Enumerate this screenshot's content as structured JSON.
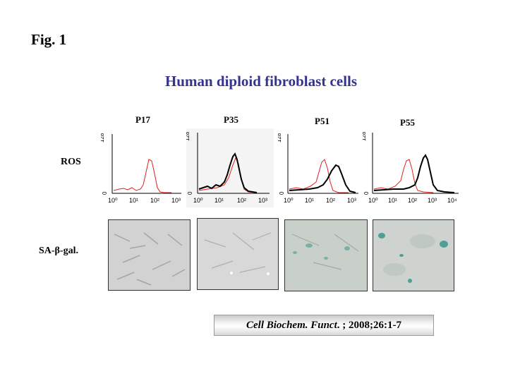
{
  "figure": {
    "label": "Fig. 1",
    "title": "Human diploid fibroblast cells",
    "row_labels": {
      "ros": "ROS",
      "sa_gal": "SA-β-gal."
    },
    "passages": [
      {
        "label": "P17",
        "colors": {
          "red": "#e02020",
          "black": null
        }
      },
      {
        "label": "P35",
        "colors": {
          "red": "#e02020",
          "black": "#000000"
        }
      },
      {
        "label": "P51",
        "colors": {
          "red": "#e02020",
          "black": "#000000"
        }
      },
      {
        "label": "P55",
        "colors": {
          "red": "#e02020",
          "black": "#000000"
        }
      }
    ],
    "histogram_axes": {
      "y_tick_top": "128",
      "y_tick_bottom": "0",
      "x_ticks": [
        "10⁰",
        "10¹",
        "10²",
        "10³"
      ],
      "x_ticks_last": [
        "10⁰",
        "10¹",
        "10²",
        "10³",
        "10⁴"
      ]
    },
    "micrograph_style": [
      {
        "tone": "#d4d4d4",
        "stain": "none"
      },
      {
        "tone": "#d9d9d9",
        "stain": "none"
      },
      {
        "tone": "#c9cfc9",
        "stain": "light-blue-green"
      },
      {
        "tone": "#cfd3cf",
        "stain": "blue-green"
      }
    ]
  },
  "citation": {
    "journal": "Cell Biochem. Funct",
    "rest": ". ; 2008;26:1-7"
  }
}
